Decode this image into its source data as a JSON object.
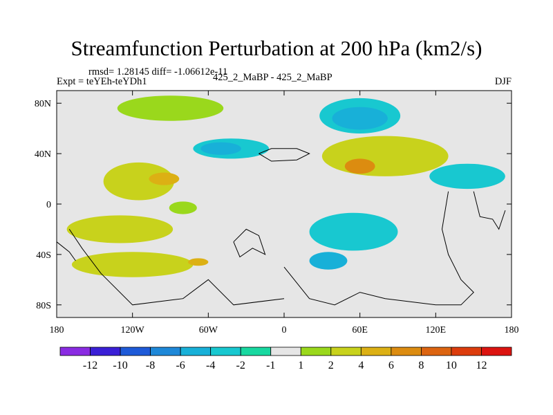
{
  "chart_data": {
    "type": "heatmap",
    "title": "Streamfunction Perturbation at 200 hPa (km2/s)",
    "stats_label": "rmsd= 1.28145 diff= -1.06612e-11",
    "left_label": "Expt = teYEh-teYDh1",
    "center_label": "425_2_MaBP - 425_2_MaBP",
    "right_label": "DJF",
    "x_range": [
      -180,
      180
    ],
    "y_range": [
      -90,
      90
    ],
    "x_ticks": [
      {
        "value": -180,
        "label": "180"
      },
      {
        "value": -120,
        "label": "120W"
      },
      {
        "value": -60,
        "label": "60W"
      },
      {
        "value": 0,
        "label": "0"
      },
      {
        "value": 60,
        "label": "60E"
      },
      {
        "value": 120,
        "label": "120E"
      },
      {
        "value": 180,
        "label": "180"
      }
    ],
    "y_ticks": [
      {
        "value": 80,
        "label": "80N"
      },
      {
        "value": 40,
        "label": "40N"
      },
      {
        "value": 0,
        "label": "0"
      },
      {
        "value": -40,
        "label": "40S"
      },
      {
        "value": -80,
        "label": "80S"
      }
    ],
    "colorbar": {
      "colors": [
        "#8a2be2",
        "#3a1fd6",
        "#1e5ad8",
        "#1e88d8",
        "#18b0d8",
        "#18c8d0",
        "#18d8a0",
        "#e6e6e6",
        "#9ad81c",
        "#c8d21c",
        "#dcb014",
        "#dc8c10",
        "#dc6410",
        "#dc3c0c",
        "#dc1410"
      ],
      "labels": [
        {
          "after": 0,
          "text": "-12"
        },
        {
          "after": 1,
          "text": "-10"
        },
        {
          "after": 2,
          "text": "-8"
        },
        {
          "after": 3,
          "text": "-6"
        },
        {
          "after": 4,
          "text": "-4"
        },
        {
          "after": 5,
          "text": "-2"
        },
        {
          "after": 6,
          "text": "-1"
        },
        {
          "after": 7,
          "text": "1"
        },
        {
          "after": 8,
          "text": "2"
        },
        {
          "after": 9,
          "text": "4"
        },
        {
          "after": 10,
          "text": "6"
        },
        {
          "after": 11,
          "text": "8"
        },
        {
          "after": 12,
          "text": "10"
        },
        {
          "after": 13,
          "text": "12"
        }
      ]
    },
    "anomalies": [
      {
        "name": "n-pacific-high",
        "lon": -90,
        "lat": 76,
        "rlon": 42,
        "rlat": 10,
        "value": 1.8
      },
      {
        "name": "n-atlantic-low",
        "lon": 60,
        "lat": 70,
        "rlon": 32,
        "rlat": 14,
        "value": -3.5
      },
      {
        "name": "n-atlantic-low-core",
        "lon": 60,
        "lat": 68,
        "rlon": 22,
        "rlat": 9,
        "value": -4.2
      },
      {
        "name": "europe-low",
        "lon": -42,
        "lat": 44,
        "rlon": 30,
        "rlat": 8,
        "value": -2.5
      },
      {
        "name": "europe-low-core",
        "lon": -50,
        "lat": 44,
        "rlon": 16,
        "rlat": 5,
        "value": -4.2
      },
      {
        "name": "asia-high",
        "lon": 80,
        "lat": 38,
        "rlon": 50,
        "rlat": 16,
        "value": 3.2
      },
      {
        "name": "asia-high-core",
        "lon": 60,
        "lat": 30,
        "rlon": 12,
        "rlat": 6,
        "value": 6.5
      },
      {
        "name": "pacific-low",
        "lon": 145,
        "lat": 22,
        "rlon": 30,
        "rlat": 10,
        "value": -3.5
      },
      {
        "name": "americas-high",
        "lon": -115,
        "lat": 18,
        "rlon": 28,
        "rlat": 15,
        "value": 2.2
      },
      {
        "name": "americas-high-core",
        "lon": -95,
        "lat": 20,
        "rlon": 12,
        "rlat": 5,
        "value": 4.2
      },
      {
        "name": "equatorial-high",
        "lon": -80,
        "lat": -3,
        "rlon": 11,
        "rlat": 5,
        "value": 1.5
      },
      {
        "name": "s-pacific-high",
        "lon": -130,
        "lat": -20,
        "rlon": 42,
        "rlat": 11,
        "value": 2.3
      },
      {
        "name": "s-ocean-high",
        "lon": -120,
        "lat": -48,
        "rlon": 48,
        "rlat": 10,
        "value": 2.4
      },
      {
        "name": "s-ocean-high-core",
        "lon": -68,
        "lat": -46,
        "rlon": 8,
        "rlat": 3,
        "value": 5.2
      },
      {
        "name": "indian-low",
        "lon": 55,
        "lat": -22,
        "rlon": 35,
        "rlat": 15,
        "value": -3.2
      },
      {
        "name": "s-atlantic-low",
        "lon": 35,
        "lat": -45,
        "rlon": 15,
        "rlat": 7,
        "value": -4.2
      }
    ],
    "coastlines": [
      [
        [
          -20,
          40
        ],
        [
          -10,
          44
        ],
        [
          0,
          44
        ],
        [
          10,
          44
        ],
        [
          20,
          40
        ],
        [
          10,
          35
        ],
        [
          -10,
          34
        ],
        [
          -20,
          40
        ]
      ],
      [
        [
          -40,
          -30
        ],
        [
          -30,
          -20
        ],
        [
          -20,
          -25
        ],
        [
          -15,
          -40
        ],
        [
          -25,
          -35
        ],
        [
          -35,
          -42
        ],
        [
          -40,
          -30
        ]
      ],
      [
        [
          0,
          -50
        ],
        [
          20,
          -75
        ],
        [
          40,
          -80
        ],
        [
          60,
          -70
        ],
        [
          80,
          -75
        ],
        [
          120,
          -80
        ],
        [
          140,
          -80
        ],
        [
          150,
          -70
        ],
        [
          140,
          -60
        ],
        [
          130,
          -40
        ],
        [
          125,
          -20
        ],
        [
          130,
          10
        ]
      ],
      [
        [
          150,
          10
        ],
        [
          155,
          -10
        ],
        [
          165,
          -12
        ],
        [
          170,
          -20
        ],
        [
          175,
          -5
        ]
      ],
      [
        [
          -170,
          -20
        ],
        [
          -160,
          -35
        ],
        [
          -145,
          -55
        ],
        [
          -120,
          -80
        ],
        [
          -80,
          -75
        ],
        [
          -60,
          -60
        ],
        [
          -40,
          -80
        ],
        [
          0,
          -75
        ]
      ],
      [
        [
          -180,
          -30
        ],
        [
          -170,
          -38
        ],
        [
          -165,
          -45
        ]
      ]
    ]
  }
}
